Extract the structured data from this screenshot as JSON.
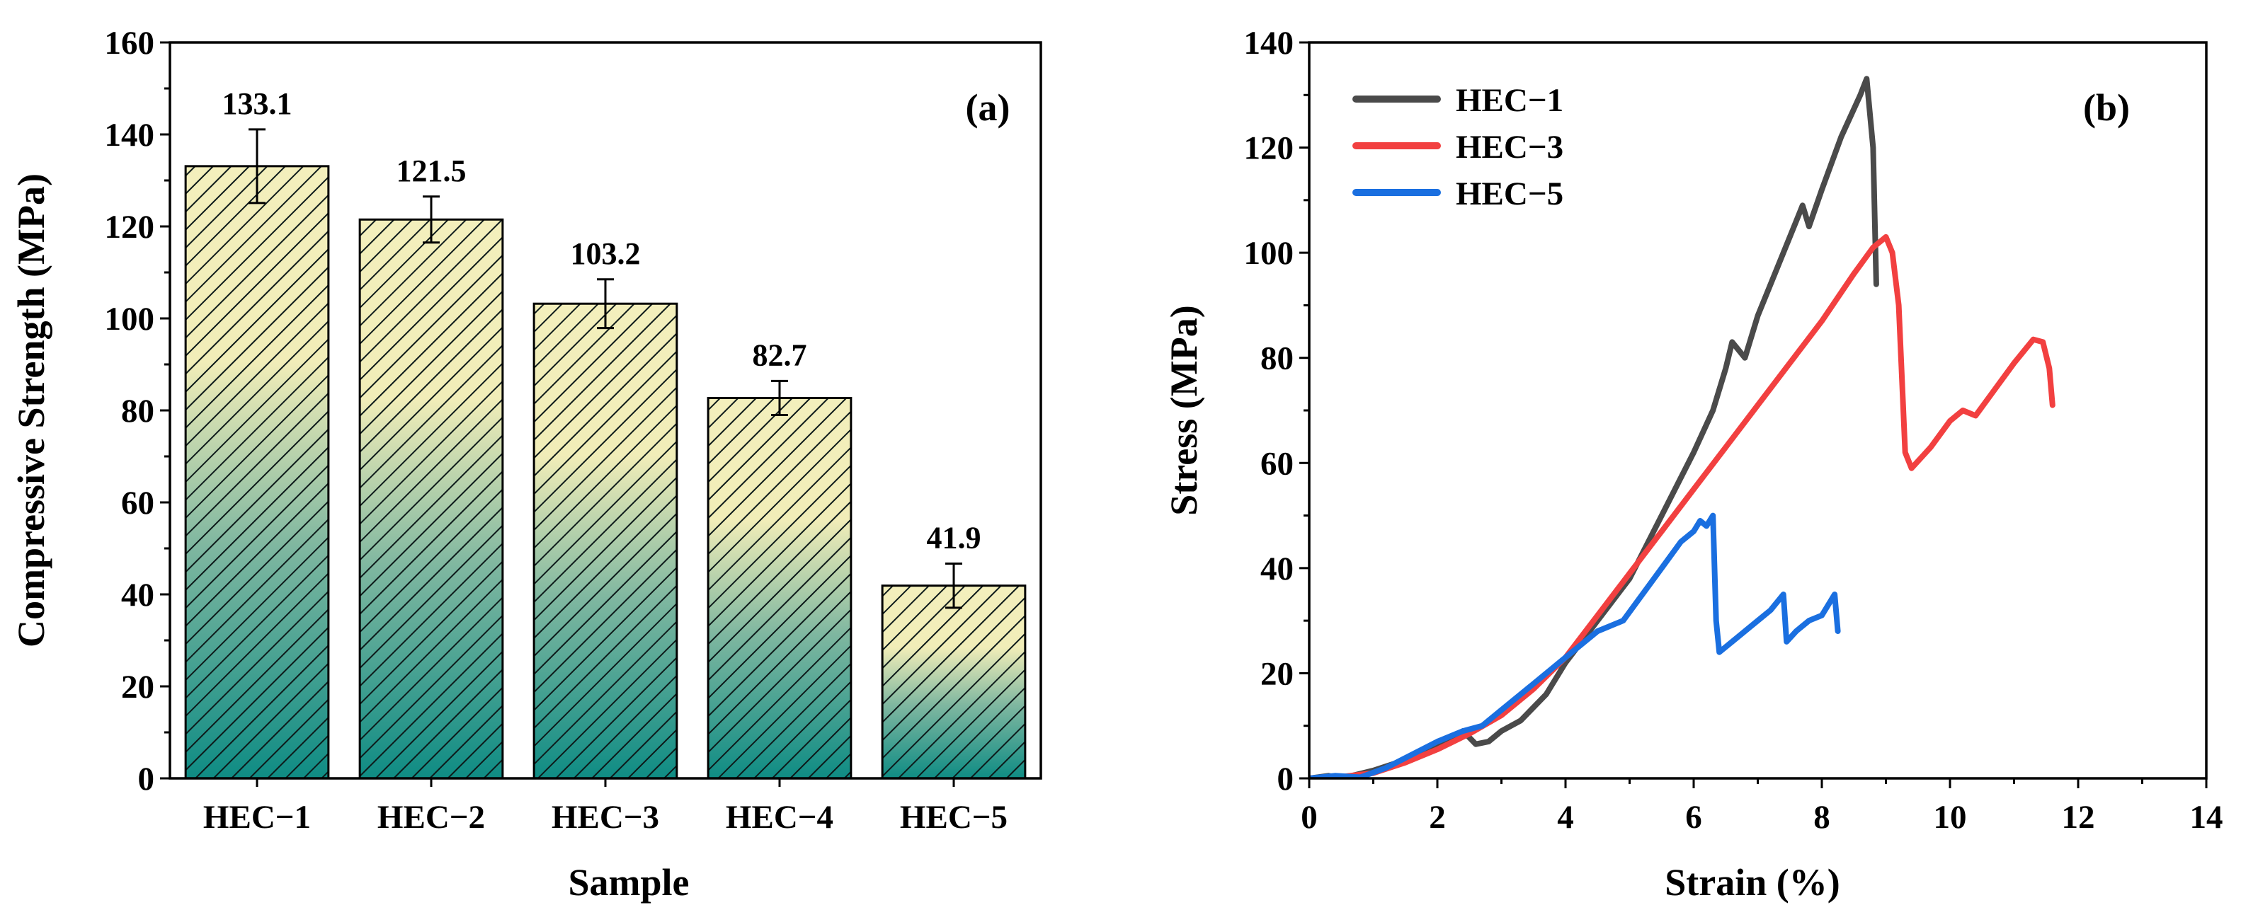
{
  "chart_data": [
    {
      "type": "bar",
      "panel_label": "(a)",
      "title": "",
      "xlabel": "Sample",
      "ylabel": "Compressive Strength (MPa)",
      "categories": [
        "HEC−1",
        "HEC−2",
        "HEC−3",
        "HEC−4",
        "HEC−5"
      ],
      "values": [
        133.1,
        121.5,
        103.2,
        82.7,
        41.9
      ],
      "value_labels": [
        "133.1",
        "121.5",
        "103.2",
        "82.7",
        "41.9"
      ],
      "errors": [
        8.0,
        5.0,
        5.3,
        3.7,
        4.8
      ],
      "ylim": [
        0,
        160
      ],
      "yticks": [
        0,
        20,
        40,
        60,
        80,
        100,
        120,
        140,
        160
      ],
      "ytick_labels": [
        "0",
        "20",
        "40",
        "60",
        "80",
        "100",
        "120",
        "140",
        "160"
      ],
      "fill_colors": {
        "top": "#f3efbc",
        "bottom": "#0f8c84",
        "hatch": "#0d1a1a"
      }
    },
    {
      "type": "line",
      "panel_label": "(b)",
      "title": "",
      "xlabel": "Strain (%)",
      "ylabel": "Stress (MPa)",
      "xlim": [
        0,
        14
      ],
      "ylim": [
        0,
        140
      ],
      "xticks": [
        0,
        2,
        4,
        6,
        8,
        10,
        12,
        14
      ],
      "xtick_labels": [
        "0",
        "2",
        "4",
        "6",
        "8",
        "10",
        "12",
        "14"
      ],
      "yticks": [
        0,
        20,
        40,
        60,
        80,
        100,
        120,
        140
      ],
      "ytick_labels": [
        "0",
        "20",
        "40",
        "60",
        "80",
        "100",
        "120",
        "140"
      ],
      "legend_position": "top-left",
      "series": [
        {
          "name": "HEC−1",
          "color": "#4a4a4a",
          "points": [
            [
              0,
              0
            ],
            [
              0.3,
              0.5
            ],
            [
              0.5,
              0
            ],
            [
              1.0,
              1.5
            ],
            [
              1.5,
              3.5
            ],
            [
              2.0,
              6
            ],
            [
              2.4,
              9
            ],
            [
              2.6,
              6.5
            ],
            [
              2.8,
              7
            ],
            [
              3.0,
              9
            ],
            [
              3.3,
              11
            ],
            [
              3.7,
              16
            ],
            [
              4.0,
              22
            ],
            [
              4.5,
              30
            ],
            [
              5.0,
              38
            ],
            [
              5.5,
              50
            ],
            [
              6.0,
              62
            ],
            [
              6.3,
              70
            ],
            [
              6.5,
              78
            ],
            [
              6.6,
              83
            ],
            [
              6.8,
              80
            ],
            [
              7.0,
              88
            ],
            [
              7.3,
              97
            ],
            [
              7.6,
              106
            ],
            [
              7.7,
              109
            ],
            [
              7.8,
              105
            ],
            [
              8.0,
              112
            ],
            [
              8.3,
              122
            ],
            [
              8.6,
              130
            ],
            [
              8.7,
              133.1
            ],
            [
              8.8,
              120
            ],
            [
              8.85,
              94
            ]
          ]
        },
        {
          "name": "HEC−3",
          "color": "#f24040",
          "points": [
            [
              0,
              0
            ],
            [
              0.5,
              0.3
            ],
            [
              1.0,
              1
            ],
            [
              1.5,
              3
            ],
            [
              2.0,
              5.5
            ],
            [
              2.5,
              8.5
            ],
            [
              3.0,
              12
            ],
            [
              3.5,
              17
            ],
            [
              4.0,
              23
            ],
            [
              4.5,
              31
            ],
            [
              5.0,
              39
            ],
            [
              5.5,
              47
            ],
            [
              6.0,
              55
            ],
            [
              6.5,
              63
            ],
            [
              7.0,
              71
            ],
            [
              7.5,
              79
            ],
            [
              8.0,
              87
            ],
            [
              8.5,
              96
            ],
            [
              8.8,
              101
            ],
            [
              9.0,
              103
            ],
            [
              9.1,
              100
            ],
            [
              9.2,
              90
            ],
            [
              9.3,
              62
            ],
            [
              9.4,
              59
            ],
            [
              9.7,
              63
            ],
            [
              10.0,
              68
            ],
            [
              10.2,
              70
            ],
            [
              10.4,
              69
            ],
            [
              10.7,
              74
            ],
            [
              11.0,
              79
            ],
            [
              11.3,
              83.5
            ],
            [
              11.45,
              83
            ],
            [
              11.55,
              78
            ],
            [
              11.6,
              71
            ]
          ]
        },
        {
          "name": "HEC−5",
          "color": "#1a6fe0",
          "points": [
            [
              0,
              0
            ],
            [
              0.4,
              0.5
            ],
            [
              0.8,
              0.2
            ],
            [
              1.2,
              2
            ],
            [
              1.6,
              4.5
            ],
            [
              2.0,
              7
            ],
            [
              2.4,
              9
            ],
            [
              2.7,
              10
            ],
            [
              3.0,
              13
            ],
            [
              3.5,
              18
            ],
            [
              4.0,
              23
            ],
            [
              4.5,
              28
            ],
            [
              4.7,
              29
            ],
            [
              4.9,
              30
            ],
            [
              5.2,
              35
            ],
            [
              5.5,
              40
            ],
            [
              5.8,
              45
            ],
            [
              6.0,
              47
            ],
            [
              6.1,
              49
            ],
            [
              6.2,
              48
            ],
            [
              6.3,
              50
            ],
            [
              6.35,
              30
            ],
            [
              6.4,
              24
            ],
            [
              6.6,
              26
            ],
            [
              6.8,
              28
            ],
            [
              7.0,
              30
            ],
            [
              7.2,
              32
            ],
            [
              7.4,
              35
            ],
            [
              7.45,
              26
            ],
            [
              7.6,
              28
            ],
            [
              7.8,
              30
            ],
            [
              8.0,
              31
            ],
            [
              8.2,
              35
            ],
            [
              8.25,
              28
            ]
          ]
        }
      ]
    }
  ]
}
